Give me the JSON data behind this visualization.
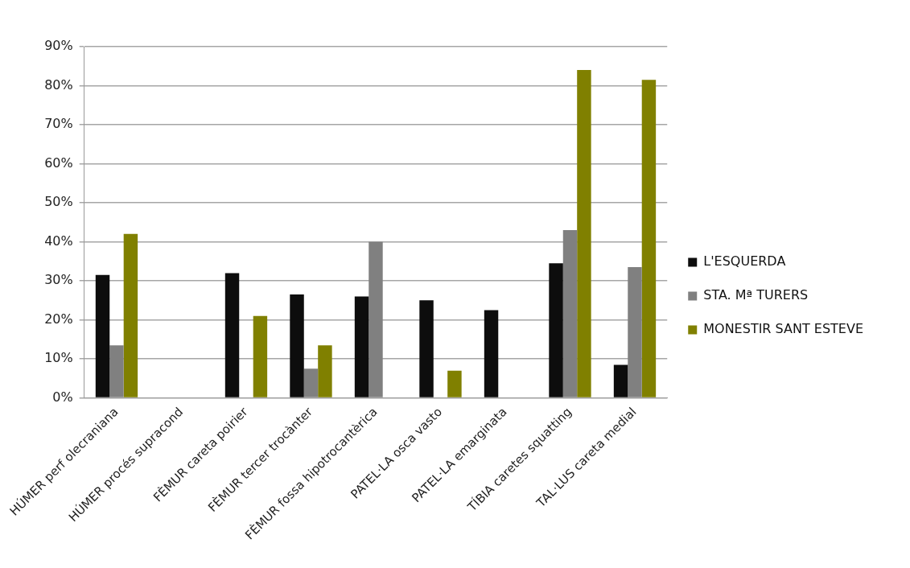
{
  "chart_data": {
    "type": "bar",
    "categories": [
      "HÚMER perf olecraniana",
      "HÚMER procés supracond",
      "FÈMUR careta poirier",
      "FÈMUR tercer trocànter",
      "FÈMUR fossa hipotrocantèrica",
      "PATEL·LA osca vasto",
      "PATEL·LA emarginata",
      "TÍBIA caretes squatting",
      "TAL·LUS careta medial"
    ],
    "series": [
      {
        "name": "L'ESQUERDA",
        "color": "#0d0d0d",
        "values": [
          31.5,
          null,
          32,
          26.5,
          26,
          25,
          22.5,
          34.5,
          8.5
        ]
      },
      {
        "name": "STA. Mª TURERS",
        "color": "#808080",
        "values": [
          13.5,
          null,
          null,
          7.5,
          40,
          null,
          null,
          43,
          33.5
        ]
      },
      {
        "name": "MONESTIR SANT ESTEVE",
        "color": "#808000",
        "values": [
          42,
          null,
          21,
          13.5,
          null,
          7,
          null,
          84,
          81.5
        ]
      }
    ],
    "ylim": [
      0,
      90
    ],
    "yticks": [
      {
        "value": 0,
        "label": "0%"
      },
      {
        "value": 10,
        "label": "10%"
      },
      {
        "value": 20,
        "label": "20%"
      },
      {
        "value": 30,
        "label": "30%"
      },
      {
        "value": 40,
        "label": "40%"
      },
      {
        "value": 50,
        "label": "50%"
      },
      {
        "value": 60,
        "label": "60%"
      },
      {
        "value": 70,
        "label": "70%"
      },
      {
        "value": 80,
        "label": "80%"
      },
      {
        "value": 90,
        "label": "90%"
      }
    ],
    "grid": "y",
    "legend": "right"
  }
}
